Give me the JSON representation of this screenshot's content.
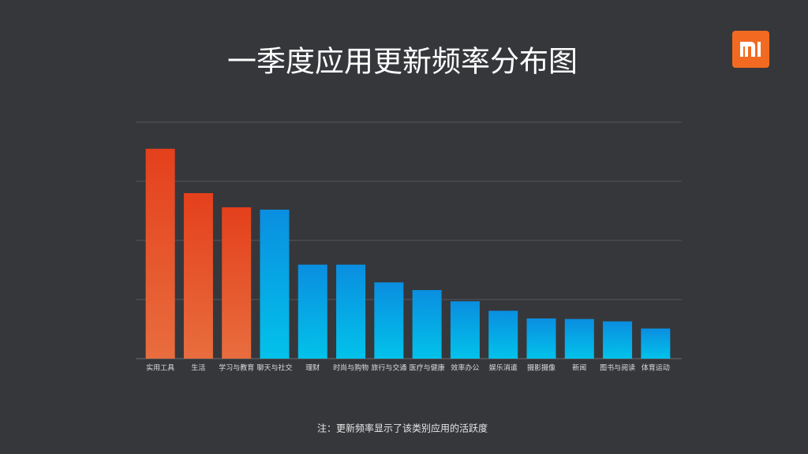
{
  "chart_data": {
    "type": "bar",
    "title": "一季度应用更新频率分布图",
    "note": "注：更新频率显示了该类别应用的活跃度",
    "categories": [
      "实用工具",
      "生活",
      "学习与教育",
      "聊天与社交",
      "理财",
      "时尚与购物",
      "旅行与交通",
      "医疗与健康",
      "效率办公",
      "娱乐消遣",
      "摄影摄像",
      "新闻",
      "图书与阅读",
      "体育运动"
    ],
    "values": [
      3.55,
      2.8,
      2.56,
      2.52,
      1.59,
      1.59,
      1.29,
      1.16,
      0.97,
      0.81,
      0.68,
      0.67,
      0.63,
      0.51
    ],
    "colors": [
      [
        "#e4401c",
        "#e86d3e"
      ],
      [
        "#e4401c",
        "#e86d3e"
      ],
      [
        "#e4401c",
        "#e86d3e"
      ],
      [
        "#0a8ee0",
        "#02c2ea"
      ],
      [
        "#0a8ee0",
        "#02c2ea"
      ],
      [
        "#0a8ee0",
        "#02c2ea"
      ],
      [
        "#0a8ee0",
        "#02c2ea"
      ],
      [
        "#0a8ee0",
        "#02c2ea"
      ],
      [
        "#0a8ee0",
        "#02c2ea"
      ],
      [
        "#0a8ee0",
        "#02c2ea"
      ],
      [
        "#0a8ee0",
        "#02c2ea"
      ],
      [
        "#0a8ee0",
        "#02c2ea"
      ],
      [
        "#0a8ee0",
        "#02c2ea"
      ],
      [
        "#0a8ee0",
        "#02c2ea"
      ]
    ],
    "ylim": [
      0,
      4
    ],
    "yticks": [
      0,
      1,
      2,
      3,
      4
    ],
    "grid": true
  }
}
